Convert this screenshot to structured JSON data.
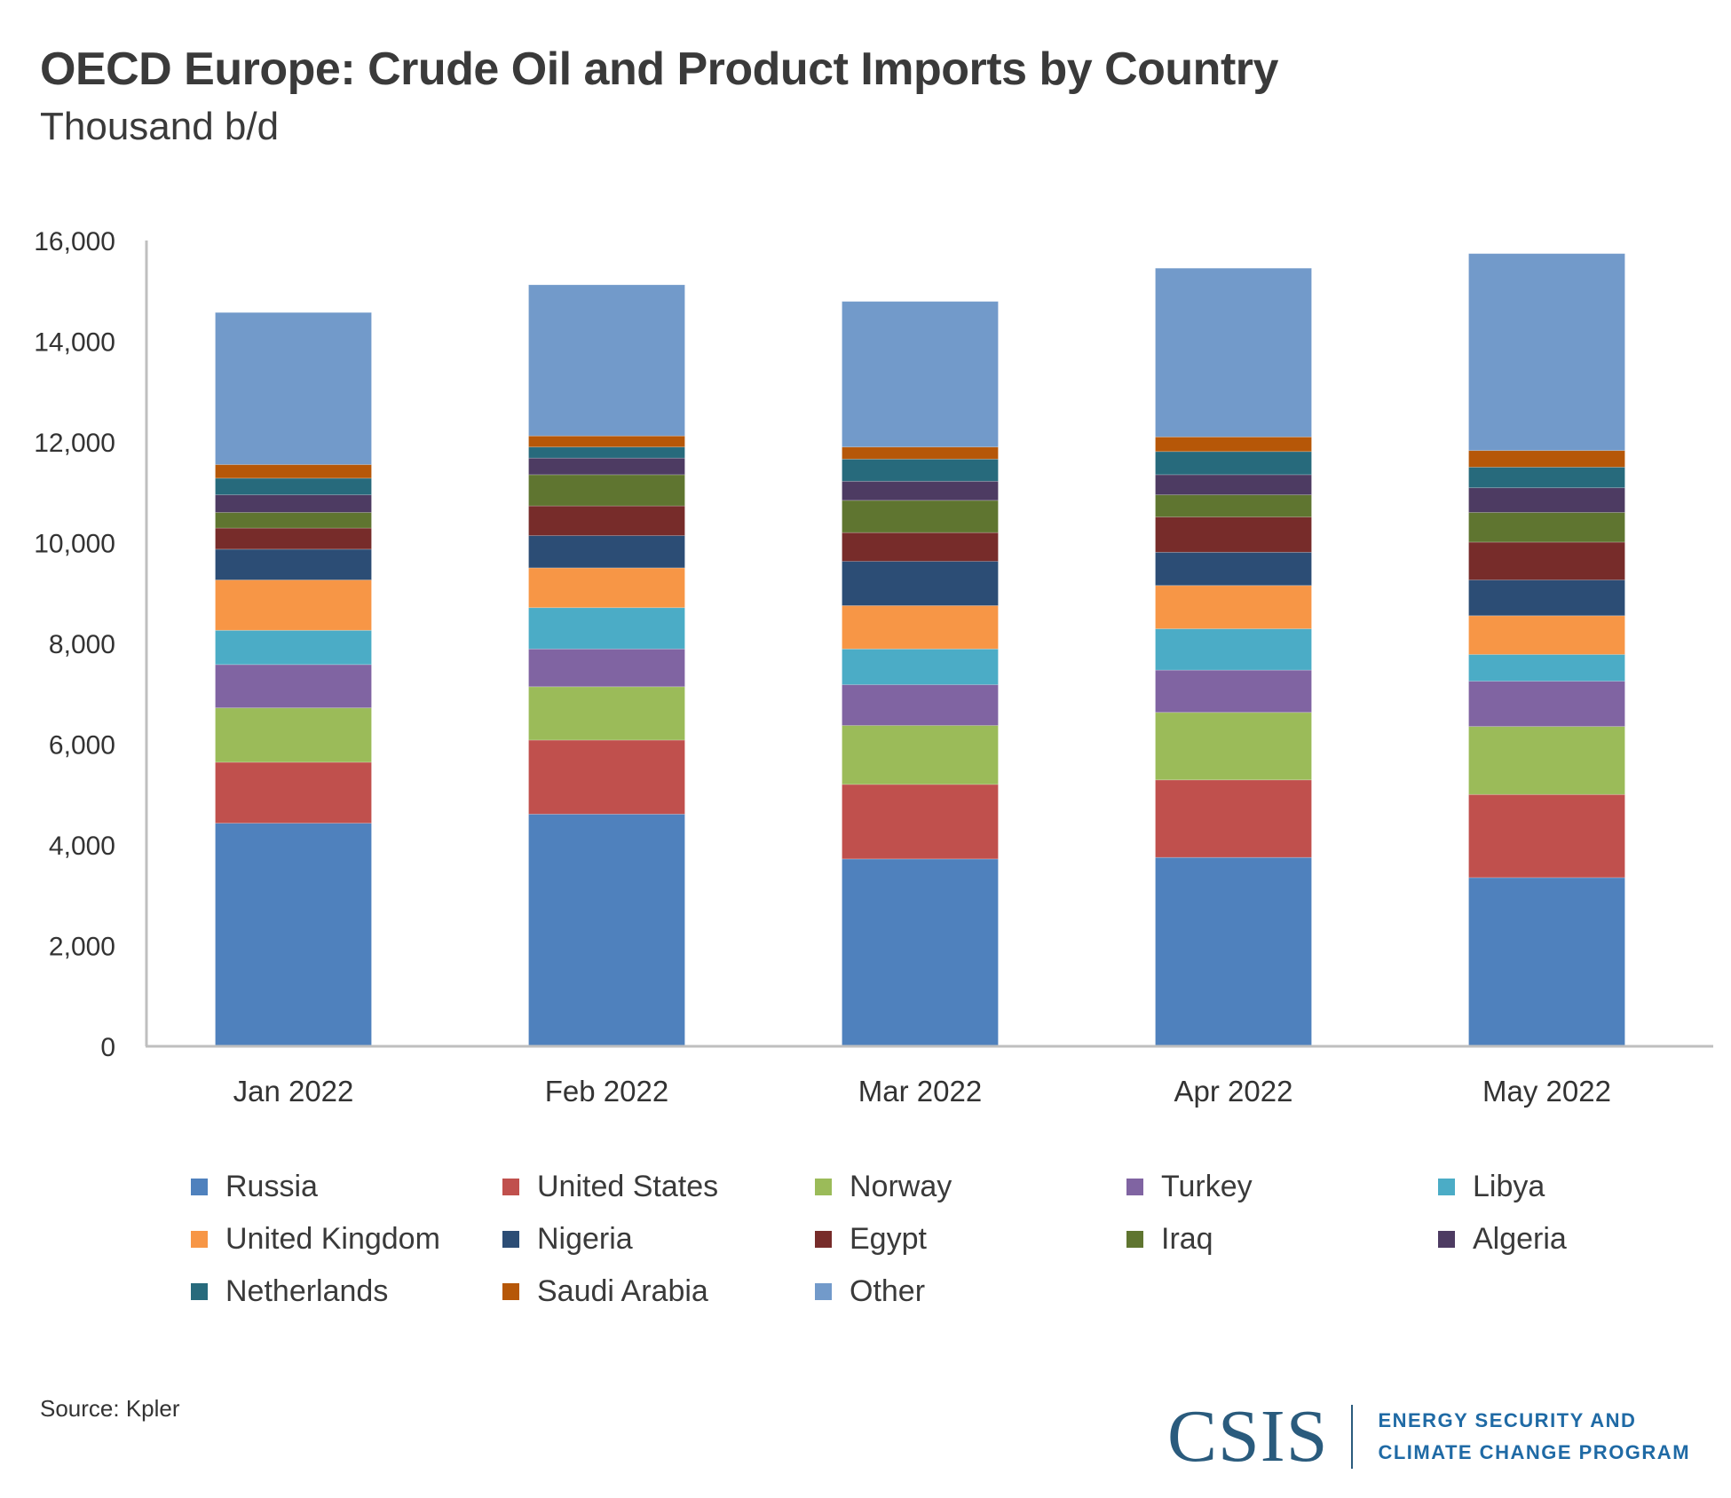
{
  "header": {
    "title": "OECD Europe: Crude Oil and Product Imports by Country",
    "subtitle": "Thousand b/d"
  },
  "footer": {
    "source": "Source: Kpler",
    "logo_mark": "CSIS",
    "logo_line1": "ENERGY SECURITY AND",
    "logo_line2": "CLIMATE CHANGE PROGRAM"
  },
  "chart_data": {
    "type": "bar",
    "stacked": true,
    "title": "OECD Europe: Crude Oil and Product Imports by Country",
    "subtitle": "Thousand b/d",
    "xlabel": "",
    "ylabel": "Thousand b/d",
    "ylim": [
      0,
      16000
    ],
    "yticks": [
      0,
      2000,
      4000,
      6000,
      8000,
      10000,
      12000,
      14000,
      16000
    ],
    "ytick_labels": [
      "0",
      "2,000",
      "4,000",
      "6,000",
      "8,000",
      "10,000",
      "12,000",
      "14,000",
      "16,000"
    ],
    "grid": false,
    "legend_position": "bottom",
    "categories": [
      "Jan 2022",
      "Feb 2022",
      "Mar 2022",
      "Apr 2022",
      "May 2022"
    ],
    "series": [
      {
        "name": "Russia",
        "color": "#4f81bd",
        "values": [
          4430,
          4610,
          3720,
          3750,
          3350
        ]
      },
      {
        "name": "United States",
        "color": "#c0504d",
        "values": [
          1210,
          1470,
          1480,
          1540,
          1650
        ]
      },
      {
        "name": "Norway",
        "color": "#9bbb59",
        "values": [
          1080,
          1060,
          1170,
          1340,
          1350
        ]
      },
      {
        "name": "Turkey",
        "color": "#8064a2",
        "values": [
          860,
          750,
          810,
          840,
          900
        ]
      },
      {
        "name": "Libya",
        "color": "#4bacc6",
        "values": [
          680,
          820,
          710,
          820,
          530
        ]
      },
      {
        "name": "United Kingdom",
        "color": "#f79646",
        "values": [
          1000,
          790,
          860,
          860,
          770
        ]
      },
      {
        "name": "Nigeria",
        "color": "#2c4d75",
        "values": [
          610,
          640,
          880,
          660,
          710
        ]
      },
      {
        "name": "Egypt",
        "color": "#772c2a",
        "values": [
          420,
          590,
          570,
          700,
          750
        ]
      },
      {
        "name": "Iraq",
        "color": "#5f7530",
        "values": [
          310,
          620,
          640,
          440,
          590
        ]
      },
      {
        "name": "Algeria",
        "color": "#4d3b62",
        "values": [
          350,
          330,
          380,
          400,
          490
        ]
      },
      {
        "name": "Netherlands",
        "color": "#276a7c",
        "values": [
          330,
          220,
          440,
          460,
          410
        ]
      },
      {
        "name": "Saudi Arabia",
        "color": "#b65708",
        "values": [
          270,
          220,
          240,
          290,
          330
        ]
      },
      {
        "name": "Other",
        "color": "#729aca",
        "values": [
          3020,
          3000,
          2890,
          3350,
          3910
        ]
      }
    ]
  }
}
